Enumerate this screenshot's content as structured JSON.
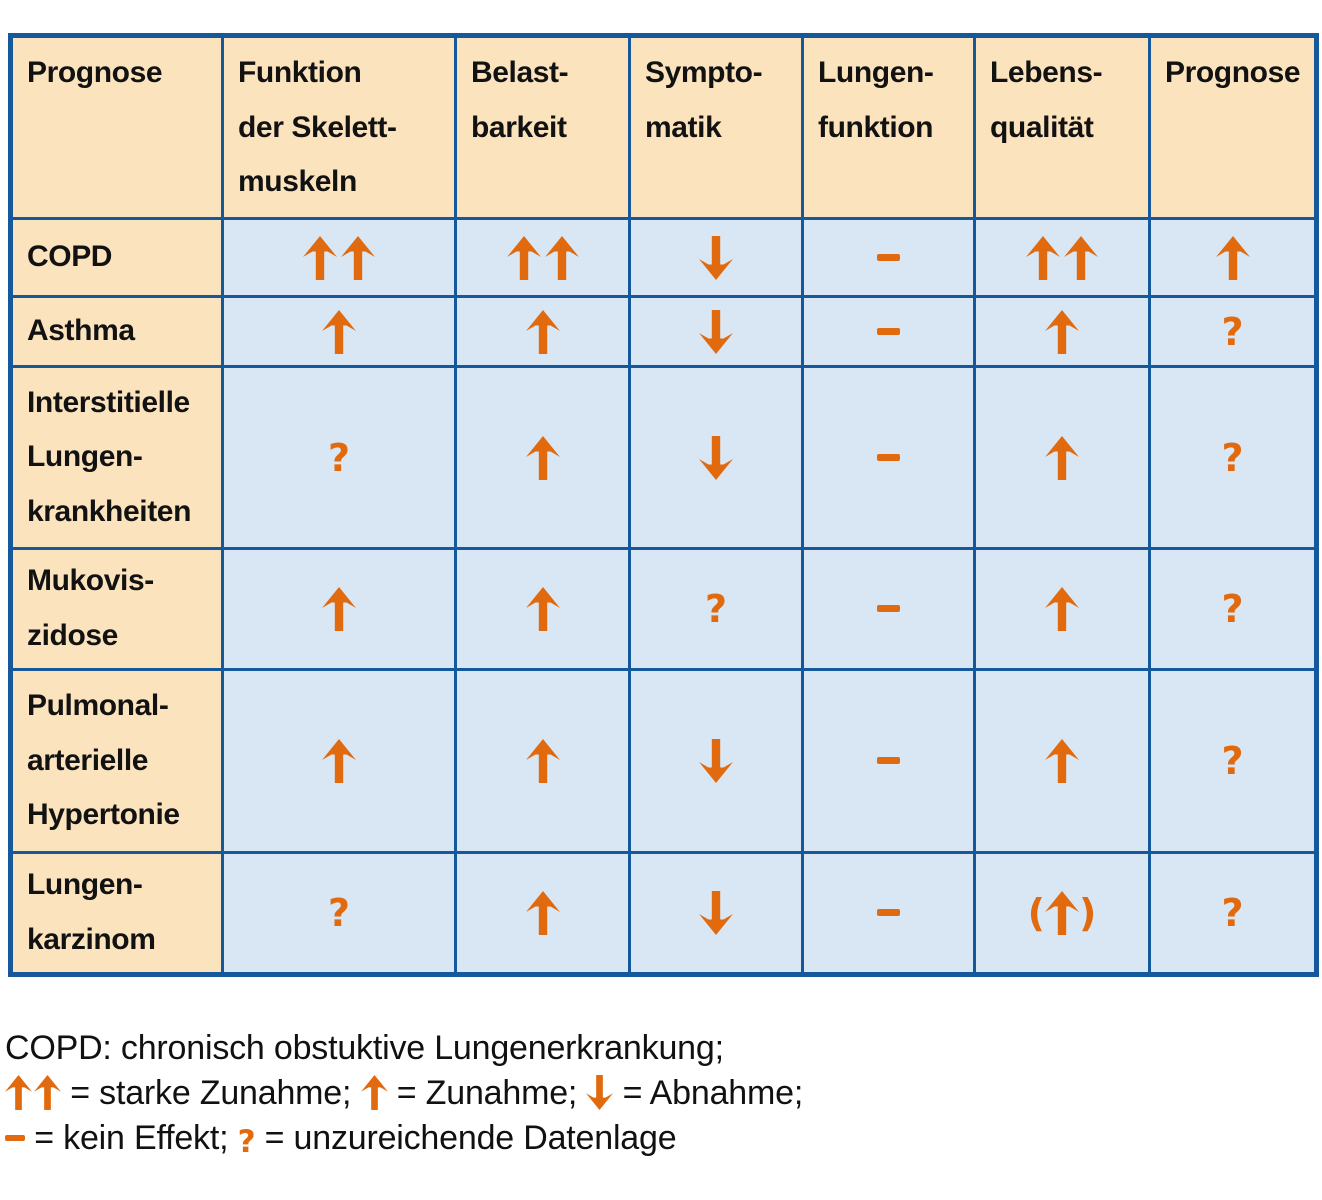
{
  "colors": {
    "header_bg": "#FBE3BD",
    "cell_bg": "#D9E7F5",
    "border": "#15599C",
    "symbol": "#E26A0E",
    "text": "#121212"
  },
  "table": {
    "headers": [
      "Prognose",
      "Funktion\nder Skelett-\nmuskeln",
      "Belast-\nbarkeit",
      "Sympto-\nmatik",
      "Lungen-\nfunktion",
      "Lebens-\nqualität",
      "Prognose"
    ],
    "rows": [
      {
        "label": "COPD",
        "cells": [
          "↑↑",
          "↑↑",
          "↓",
          "–",
          "↑↑",
          "↑"
        ]
      },
      {
        "label": "Asthma",
        "cells": [
          "↑",
          "↑",
          "↓",
          "–",
          "↑",
          "?"
        ]
      },
      {
        "label": "Interstitielle\nLungen-\nkrankheiten",
        "cells": [
          "?",
          "↑",
          "↓",
          "–",
          "↑",
          "?"
        ]
      },
      {
        "label": "Mukovis-\nzidose",
        "cells": [
          "↑",
          "↑",
          "?",
          "–",
          "↑",
          "?"
        ]
      },
      {
        "label": "Pulmonal-\narterielle\nHypertonie",
        "cells": [
          "↑",
          "↑",
          "↓",
          "–",
          "↑",
          "?"
        ]
      },
      {
        "label": "Lungen-\nkarzinom",
        "cells": [
          "?",
          "↑",
          "↓",
          "–",
          "(↑)",
          "?"
        ]
      }
    ]
  },
  "legend": {
    "line1": "COPD: chronisch obstuktive Lungenerkrankung;",
    "line2": [
      {
        "sym": "↑↑"
      },
      {
        "text": " = starke Zunahme; "
      },
      {
        "sym": "↑"
      },
      {
        "text": " = Zunahme; "
      },
      {
        "sym": "↓"
      },
      {
        "text": " = Abnahme;"
      }
    ],
    "line3": [
      {
        "sym": "–"
      },
      {
        "text": " = kein Effekt; "
      },
      {
        "sym": "?"
      },
      {
        "text": " = unzureichende Datenlage"
      }
    ]
  }
}
